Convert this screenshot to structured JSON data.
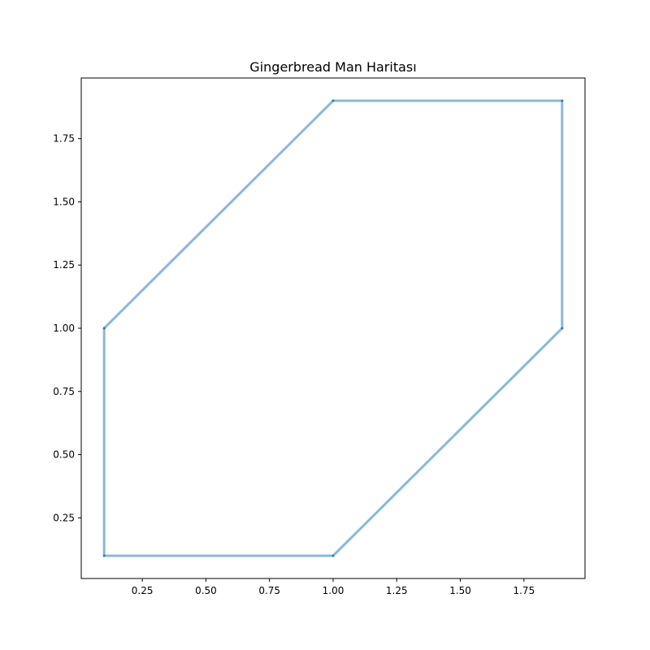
{
  "chart_data": {
    "type": "line",
    "title": "Gingerbread Man Haritası",
    "xlabel": "",
    "ylabel": "",
    "xlim": [
      0.01,
      1.99
    ],
    "ylim": [
      0.01,
      1.99
    ],
    "x_ticks": [
      0.25,
      0.5,
      0.75,
      1.0,
      1.25,
      1.5,
      1.75
    ],
    "x_tick_labels": [
      "0.25",
      "0.50",
      "0.75",
      "1.00",
      "1.25",
      "1.50",
      "1.75"
    ],
    "y_ticks": [
      0.25,
      0.5,
      0.75,
      1.0,
      1.25,
      1.5,
      1.75
    ],
    "y_tick_labels": [
      "0.25",
      "0.50",
      "0.75",
      "1.00",
      "1.25",
      "1.50",
      "1.75"
    ],
    "grid": false,
    "series": [
      {
        "x": [
          0.1,
          1.0,
          1.9,
          1.9,
          1.0,
          0.1,
          0.1
        ],
        "y": [
          1.0,
          1.9,
          1.9,
          1.0,
          0.1,
          0.1,
          1.0
        ],
        "color": "#8ab8d9",
        "marker_color": "#1f77b4"
      }
    ]
  }
}
